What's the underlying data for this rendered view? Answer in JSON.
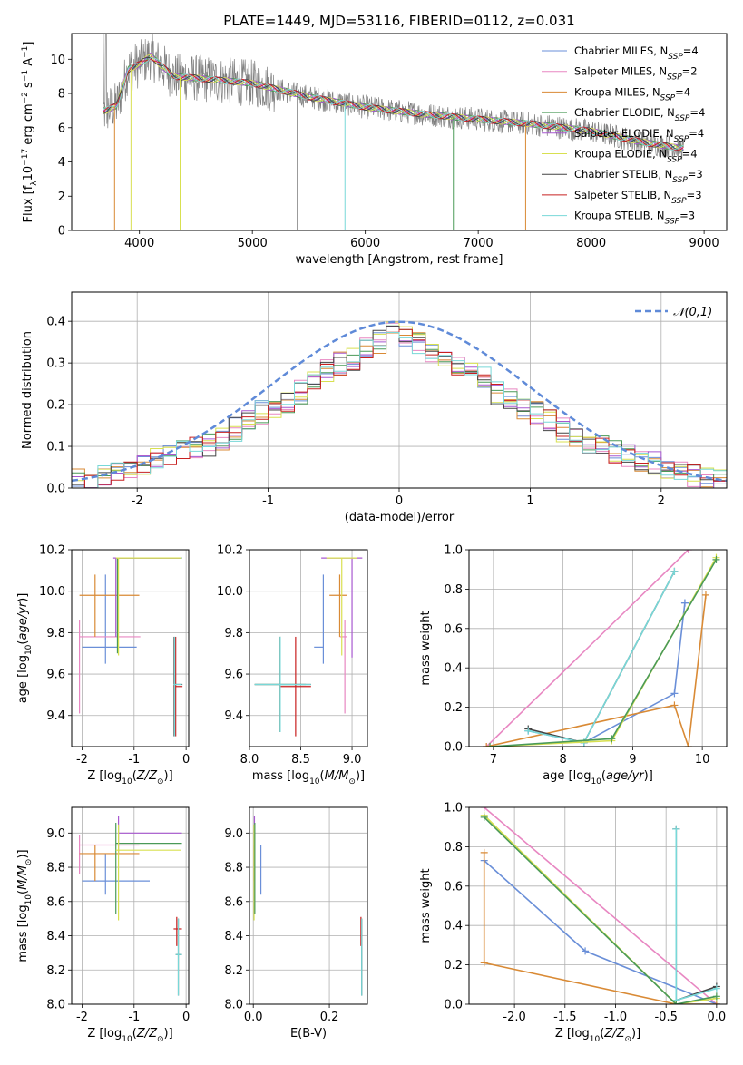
{
  "figure": {
    "title": "PLATE=1449, MJD=53116, FIBERID=0112, z=0.031"
  },
  "series": [
    {
      "name": "Chabrier MILES, N",
      "sub": "SSP",
      "tail": "=4",
      "color": "#6a8fd8"
    },
    {
      "name": "Salpeter MILES, N",
      "sub": "SSP",
      "tail": "=2",
      "color": "#e887c2"
    },
    {
      "name": "Kroupa MILES, N",
      "sub": "SSP",
      "tail": "=4",
      "color": "#d98a35"
    },
    {
      "name": "Chabrier ELODIE, N",
      "sub": "SSP",
      "tail": "=4",
      "color": "#4a9a58"
    },
    {
      "name": "Salpeter ELODIE, N",
      "sub": "SSP",
      "tail": "=4",
      "color": "#a858d0"
    },
    {
      "name": "Kroupa ELODIE, N",
      "sub": "SSP",
      "tail": "=4",
      "color": "#d8e050"
    },
    {
      "name": "Chabrier STELIB, N",
      "sub": "SSP",
      "tail": "=3",
      "color": "#444444"
    },
    {
      "name": "Salpeter STELIB, N",
      "sub": "SSP",
      "tail": "=3",
      "color": "#c82020"
    },
    {
      "name": "Kroupa STELIB, N",
      "sub": "SSP",
      "tail": "=3",
      "color": "#78d8d8"
    }
  ],
  "chart_data": [
    {
      "id": "spectrum",
      "type": "line",
      "xlabel": "wavelength [Angstrom, rest frame]",
      "ylabel": "Flux [f_lambda 10^-17 erg cm^-2 s^-1 A^-1]",
      "xlim": [
        3400,
        9200
      ],
      "ylim": [
        0,
        11.5
      ],
      "xticks": [
        4000,
        5000,
        6000,
        7000,
        8000,
        9000
      ],
      "yticks": [
        0,
        2,
        4,
        6,
        8,
        10
      ],
      "continuum_x": [
        3700,
        3800,
        3900,
        4000,
        4100,
        4300,
        4500,
        5000,
        5500,
        6000,
        6500,
        7000,
        7500,
        8000,
        8500,
        8800
      ],
      "continuum_y": [
        7.0,
        7.3,
        9.4,
        9.7,
        10.2,
        9.0,
        8.9,
        8.6,
        7.8,
        7.2,
        6.8,
        6.5,
        6.2,
        5.8,
        5.1,
        4.8
      ]
    },
    {
      "id": "residuals",
      "type": "histogram",
      "xlabel": "(data-model)/error",
      "ylabel": "Normed distribution",
      "xlim": [
        -2.5,
        2.5
      ],
      "ylim": [
        0,
        0.47
      ],
      "xticks": [
        -2,
        -1,
        0,
        1,
        2
      ],
      "yticks": [
        0.0,
        0.1,
        0.2,
        0.3,
        0.4
      ],
      "legend": "N(0,1)",
      "bin_width": 0.1,
      "bin_start": -2.5,
      "envelope": [
        0.018,
        0.022,
        0.03,
        0.038,
        0.05,
        0.058,
        0.07,
        0.08,
        0.09,
        0.095,
        0.1,
        0.12,
        0.14,
        0.16,
        0.18,
        0.195,
        0.21,
        0.23,
        0.26,
        0.28,
        0.3,
        0.31,
        0.33,
        0.35,
        0.37,
        0.38,
        0.39,
        0.39,
        0.4,
        0.4,
        0.41,
        0.41,
        0.41,
        0.4,
        0.39,
        0.39,
        0.38,
        0.37,
        0.35,
        0.33,
        0.31,
        0.29,
        0.27,
        0.25,
        0.23,
        0.21,
        0.19,
        0.17,
        0.15,
        0.13
      ]
    },
    {
      "id": "age-vs-Z",
      "type": "errorbar",
      "xlabel": "Z [log10(Z/Z_sun)]",
      "ylabel": "age [log10(age/yr)]",
      "xlim": [
        -2.2,
        0.05
      ],
      "ylim": [
        9.25,
        10.2
      ],
      "xticks": [
        -2,
        -1,
        0
      ],
      "yticks": [
        9.4,
        9.6,
        9.8,
        10.0,
        10.2
      ],
      "points": [
        {
          "s": 0,
          "x": -1.55,
          "y": 9.73,
          "xlo": -2.0,
          "xhi": -0.95,
          "ylo": 9.65,
          "yhi": 10.08
        },
        {
          "s": 1,
          "x": -2.05,
          "y": 9.78,
          "xlo": -2.05,
          "xhi": -0.88,
          "ylo": 9.41,
          "yhi": 9.86
        },
        {
          "s": 2,
          "x": -1.75,
          "y": 9.98,
          "xlo": -2.05,
          "xhi": -0.9,
          "ylo": 9.78,
          "yhi": 10.08
        },
        {
          "s": 3,
          "x": -1.32,
          "y": 10.16,
          "xlo": -1.35,
          "xhi": -0.08,
          "ylo": 9.7,
          "yhi": 10.16
        },
        {
          "s": 4,
          "x": -1.35,
          "y": 10.16,
          "xlo": -1.4,
          "xhi": -0.12,
          "ylo": 9.78,
          "yhi": 10.16
        },
        {
          "s": 5,
          "x": -1.3,
          "y": 10.16,
          "xlo": -1.35,
          "xhi": -0.1,
          "ylo": 9.69,
          "yhi": 10.16
        },
        {
          "s": 6,
          "x": -0.23,
          "y": 9.55,
          "xlo": -0.24,
          "xhi": -0.07,
          "ylo": 9.3,
          "yhi": 9.78
        },
        {
          "s": 7,
          "x": -0.2,
          "y": 9.54,
          "xlo": -0.24,
          "xhi": -0.07,
          "ylo": 9.3,
          "yhi": 9.78
        },
        {
          "s": 8,
          "x": -0.22,
          "y": 9.55,
          "xlo": -0.24,
          "xhi": -0.08,
          "ylo": 9.3,
          "yhi": 9.78
        }
      ]
    },
    {
      "id": "age-vs-mass",
      "type": "errorbar",
      "xlabel": "mass [log10(M/M_sun)]",
      "ylabel": "",
      "xlim": [
        8.0,
        9.15
      ],
      "ylim": [
        9.25,
        10.2
      ],
      "xticks": [
        8.0,
        8.5,
        9.0
      ],
      "yticks": [
        9.4,
        9.6,
        9.8,
        10.0,
        10.2
      ],
      "points": [
        {
          "s": 0,
          "x": 8.72,
          "y": 9.73,
          "xlo": 8.63,
          "xhi": 8.72,
          "ylo": 9.65,
          "yhi": 10.08
        },
        {
          "s": 1,
          "x": 8.93,
          "y": 9.78,
          "xlo": 8.88,
          "xhi": 8.95,
          "ylo": 9.41,
          "yhi": 9.86
        },
        {
          "s": 2,
          "x": 8.88,
          "y": 9.98,
          "xlo": 8.78,
          "xhi": 8.95,
          "ylo": 9.78,
          "yhi": 10.08
        },
        {
          "s": 3,
          "x": 8.3,
          "y": 9.55,
          "xlo": 8.05,
          "xhi": 8.55,
          "ylo": 9.32,
          "yhi": 9.78
        },
        {
          "s": 4,
          "x": 9.0,
          "y": 10.16,
          "xlo": 8.7,
          "xhi": 9.1,
          "ylo": 9.68,
          "yhi": 10.16
        },
        {
          "s": 5,
          "x": 8.9,
          "y": 10.16,
          "xlo": 8.75,
          "xhi": 9.05,
          "ylo": 9.69,
          "yhi": 10.16
        },
        {
          "s": 6,
          "x": 8.3,
          "y": 9.55,
          "xlo": 8.05,
          "xhi": 8.6,
          "ylo": 9.32,
          "yhi": 9.78
        },
        {
          "s": 7,
          "x": 8.45,
          "y": 9.54,
          "xlo": 8.3,
          "xhi": 8.6,
          "ylo": 9.3,
          "yhi": 9.78
        },
        {
          "s": 8,
          "x": 8.3,
          "y": 9.55,
          "xlo": 8.05,
          "xhi": 8.6,
          "ylo": 9.32,
          "yhi": 9.78
        }
      ]
    },
    {
      "id": "weight-vs-age",
      "type": "line",
      "xlabel": "age [log10(age/yr)]",
      "ylabel": "mass weight",
      "xlim": [
        6.65,
        10.35
      ],
      "ylim": [
        0,
        1.0
      ],
      "xticks": [
        7,
        8,
        9,
        10
      ],
      "yticks": [
        0.0,
        0.2,
        0.4,
        0.6,
        0.8,
        1.0
      ],
      "lines": [
        {
          "s": 1,
          "x": [
            6.9,
            9.8
          ],
          "y": [
            0.0,
            1.0
          ]
        },
        {
          "s": 0,
          "x": [
            7.5,
            8.3,
            9.6,
            9.75,
            9.75
          ],
          "y": [
            0.08,
            0.02,
            0.27,
            0.73,
            0.73
          ]
        },
        {
          "s": 2,
          "x": [
            6.9,
            9.6,
            9.8,
            10.05
          ],
          "y": [
            0.0,
            0.21,
            0.0,
            0.77
          ]
        },
        {
          "s": 6,
          "x": [
            7.5,
            8.3,
            9.6
          ],
          "y": [
            0.09,
            0.02,
            0.89
          ]
        },
        {
          "s": 8,
          "x": [
            7.5,
            8.3,
            9.6
          ],
          "y": [
            0.08,
            0.02,
            0.89
          ]
        },
        {
          "s": 5,
          "x": [
            6.95,
            8.7,
            10.2
          ],
          "y": [
            0.0,
            0.03,
            0.96
          ]
        },
        {
          "s": 3,
          "x": [
            6.95,
            8.7,
            10.2
          ],
          "y": [
            0.0,
            0.04,
            0.95
          ]
        }
      ]
    },
    {
      "id": "mass-vs-Z",
      "type": "errorbar",
      "xlabel": "Z [log10(Z/Z_sun)]",
      "ylabel": "mass [log10(M/M_sun)]",
      "xlim": [
        -2.2,
        0.05
      ],
      "ylim": [
        8.0,
        9.15
      ],
      "xticks": [
        -2,
        -1,
        0
      ],
      "yticks": [
        8.0,
        8.2,
        8.4,
        8.6,
        8.8,
        9.0
      ],
      "points": [
        {
          "s": 0,
          "x": -1.55,
          "y": 8.72,
          "xlo": -2.0,
          "xhi": -0.7,
          "ylo": 8.64,
          "yhi": 8.88
        },
        {
          "s": 1,
          "x": -2.05,
          "y": 8.93,
          "xlo": -2.05,
          "xhi": -0.9,
          "ylo": 8.76,
          "yhi": 8.99
        },
        {
          "s": 2,
          "x": -1.75,
          "y": 8.88,
          "xlo": -2.05,
          "xhi": -0.9,
          "ylo": 8.72,
          "yhi": 8.93
        },
        {
          "s": 3,
          "x": -1.35,
          "y": 8.94,
          "xlo": -1.35,
          "xhi": -0.08,
          "ylo": 8.53,
          "yhi": 9.06
        },
        {
          "s": 4,
          "x": -1.3,
          "y": 9.0,
          "xlo": -1.3,
          "xhi": -0.08,
          "ylo": 8.88,
          "yhi": 9.1
        },
        {
          "s": 5,
          "x": -1.3,
          "y": 8.9,
          "xlo": -1.35,
          "xhi": -0.1,
          "ylo": 8.49,
          "yhi": 9.05
        },
        {
          "s": 6,
          "x": -0.15,
          "y": 8.29,
          "xlo": -0.2,
          "xhi": -0.08,
          "ylo": 8.05,
          "yhi": 8.5
        },
        {
          "s": 7,
          "x": -0.18,
          "y": 8.44,
          "xlo": -0.24,
          "xhi": -0.08,
          "ylo": 8.34,
          "yhi": 8.51
        },
        {
          "s": 8,
          "x": -0.15,
          "y": 8.29,
          "xlo": -0.2,
          "xhi": -0.08,
          "ylo": 8.05,
          "yhi": 8.5
        }
      ]
    },
    {
      "id": "mass-vs-EBV",
      "type": "errorbar",
      "xlabel": "E(B-V)",
      "ylabel": "",
      "xlim": [
        -0.01,
        0.3
      ],
      "ylim": [
        8.0,
        9.15
      ],
      "xticks": [
        0.0,
        0.2
      ],
      "yticks": [
        8.0,
        8.2,
        8.4,
        8.6,
        8.8,
        9.0
      ],
      "points": [
        {
          "s": 0,
          "x": 0.02,
          "y": 8.78,
          "ylo": 8.64,
          "yhi": 8.93
        },
        {
          "s": 1,
          "x": 0.003,
          "y": 8.85,
          "ylo": 8.76,
          "yhi": 8.99
        },
        {
          "s": 2,
          "x": 0.002,
          "y": 8.82,
          "ylo": 8.72,
          "yhi": 8.93
        },
        {
          "s": 4,
          "x": 0.003,
          "y": 9.0,
          "ylo": 8.88,
          "yhi": 9.1
        },
        {
          "s": 5,
          "x": 0.002,
          "y": 8.75,
          "ylo": 8.49,
          "yhi": 9.05
        },
        {
          "s": 3,
          "x": 0.004,
          "y": 8.8,
          "ylo": 8.53,
          "yhi": 9.06
        },
        {
          "s": 6,
          "x": 0.285,
          "y": 8.29,
          "ylo": 8.05,
          "yhi": 8.5
        },
        {
          "s": 7,
          "x": 0.283,
          "y": 8.44,
          "ylo": 8.34,
          "yhi": 8.51
        },
        {
          "s": 8,
          "x": 0.285,
          "y": 8.29,
          "ylo": 8.05,
          "yhi": 8.5
        }
      ]
    },
    {
      "id": "weight-vs-Z",
      "type": "line",
      "xlabel": "Z [log10(Z/Z_sun)]",
      "ylabel": "mass weight",
      "xlim": [
        -2.45,
        0.1
      ],
      "ylim": [
        0,
        1.0
      ],
      "xticks": [
        -2.0,
        -1.5,
        -1.0,
        -0.5,
        0.0
      ],
      "yticks": [
        0.0,
        0.2,
        0.4,
        0.6,
        0.8,
        1.0
      ],
      "lines": [
        {
          "s": 1,
          "x": [
            -2.3,
            0.0
          ],
          "y": [
            1.0,
            0.0
          ]
        },
        {
          "s": 0,
          "x": [
            -2.3,
            -1.3,
            0.0
          ],
          "y": [
            0.73,
            0.27,
            0.0
          ]
        },
        {
          "s": 2,
          "x": [
            -2.3,
            -2.3,
            -0.4,
            0.0
          ],
          "y": [
            0.77,
            0.21,
            0.0,
            0.0
          ]
        },
        {
          "s": 6,
          "x": [
            -0.4,
            -0.4,
            0.0
          ],
          "y": [
            0.89,
            0.02,
            0.09
          ]
        },
        {
          "s": 8,
          "x": [
            -0.4,
            -0.4,
            0.0
          ],
          "y": [
            0.89,
            0.02,
            0.08
          ]
        },
        {
          "s": 5,
          "x": [
            -2.3,
            -0.4,
            0.0
          ],
          "y": [
            0.96,
            0.0,
            0.03
          ]
        },
        {
          "s": 3,
          "x": [
            -2.3,
            -0.4,
            0.0
          ],
          "y": [
            0.95,
            0.0,
            0.04
          ]
        }
      ]
    }
  ]
}
